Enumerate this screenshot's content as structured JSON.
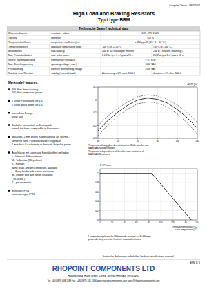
{
  "header": {
    "issue": "Ausgabe / Issue : 08/7/2007",
    "title": "High Load and Braking Resistors",
    "subtitle": "Typ / type BRM"
  },
  "specs": {
    "title": "Technische Daten / technical data",
    "rows": [
      [
        "Widerstandswerte",
        "resistance values",
        "10R, 47R, 150R,"
      ],
      [
        "Toleranz",
        "tolerance",
        "±10 %"
      ],
      [
        "Temperaturkoeffizient",
        "temperature coefficient (tcr)",
        "± 250 ppm/K ( 20 °C ~ 60 °C )"
      ],
      [
        "Temperaturbereich",
        "applicable temperature range",
        "-50 °C bis +150 °C",
        "-50 °C to +150 °C"
      ],
      [
        "Belastbarkeit",
        "load capacity",
        "200 W auf Kühlkörper montiert",
        "200 W ( heatsink mounting )"
      ],
      [
        "Max. Pulsbelastbarkeit",
        "max. pulse power",
        "2 kW für tp = 1 s / tpau = 90 s",
        "2 kW at tp = 1 s / tpau = 90 s"
      ],
      [
        "Innerer Wärmewiderstand",
        "internal heat resistance",
        "< 0.1 K/W"
      ],
      [
        "Max. Betriebsspannung",
        "operating voltage ( max )",
        "1000 VAC"
      ],
      [
        "Prüfspannung",
        "dielectric withstanding voltage",
        "2500 VAC"
      ],
      [
        "Stabilität unter Nennlast",
        "stability ( nominal load )",
        "Abweichung ≤ 1 % nach 2000 h",
        "deviation ≤ 1% after 2000 h"
      ]
    ]
  },
  "features": {
    "title": "Merkmale / features:",
    "items": [
      [
        "200 Watt Dauerleistung",
        "200 Watt permanent power"
      ],
      [
        "2 kWatt Pulsleistung für 1 s",
        "2 kWatt pulse power for 1 s"
      ],
      [
        "kompaktes Design",
        "small size"
      ],
      [
        "Bauhöhe kompatibel zu Econopack",
        "overall thickness compatible to Econopack"
      ],
      [
        "Massives, 2 mm dickes Kupfersubstrat als Wärme-",
        "senke für hohe Pulsbelastbarkeit eingebaut",
        "2 mm thick Cu substrate as heatsink for pulse power"
      ],
      [
        "Anschlüsse mit Litzen und Kontaktstiften verfügbar",
        "L - Litze mit Silikonisolation",
        "M - Teflonlitze (UL-gelistet)",
        "K - Kontakt",
        "flying leads and pin connectors available",
        "L - flying leader with silicon insulation",
        "M - copper wire with teflon insulation",
        "( UL-listed )",
        "K - pin connector"
      ],
      [
        "Schutzart IP 54",
        "protection type IP 54"
      ]
    ]
  },
  "chart_data": [
    {
      "type": "line",
      "y_label": "ΔR/R [%]",
      "annotations": [
        "Temperaturabhängigkeit des elektrischen Widerstandes von",
        "MANGANIN Widerständen",
        "Temperature dependence of the electrical resistance of",
        "MANGANIN resistors"
      ],
      "x": [
        -60,
        -40,
        -20,
        0,
        20,
        40,
        60,
        80,
        100,
        120,
        140
      ],
      "series": [
        {
          "color": "#000000",
          "line_style": "solid",
          "values": [
            -0.24,
            -0.16,
            -0.095,
            -0.04,
            0,
            0.015,
            0.005,
            -0.025,
            -0.075,
            -0.14,
            -0.22
          ]
        },
        {
          "color": "#000000",
          "line_style": "dashed",
          "values": [
            -0.2,
            -0.125,
            -0.065,
            -0.015,
            0.025,
            0.04,
            0.03,
            0.005,
            -0.04,
            -0.1,
            -0.175
          ]
        },
        {
          "color": "#000000",
          "line_style": "dashed",
          "values": [
            -0.28,
            -0.195,
            -0.125,
            -0.07,
            -0.03,
            -0.015,
            -0.025,
            -0.055,
            -0.11,
            -0.18,
            -0.265
          ]
        }
      ],
      "xlim": [
        -60,
        140
      ],
      "xticks": [
        -60,
        -20,
        20,
        60,
        100,
        140
      ],
      "ylim": [
        -0.3,
        0.1
      ],
      "yticks": [
        -0.3,
        -0.2,
        -0.1,
        0,
        0.1
      ],
      "grid": true
    },
    {
      "type": "line",
      "y_label": "P / Pnenn",
      "x_label": [
        "Gehäusetemperatur [°C]",
        "case temperature [°C]"
      ],
      "annotations": [
        "Lastminderungskurve für Widerstände montiert auf Kühlkörper",
        "power derating curve for heatsink mounted resistors"
      ],
      "x": [
        0,
        85,
        150
      ],
      "series": [
        {
          "color": "#000000",
          "line_style": "solid",
          "values": [
            1,
            1,
            0
          ]
        }
      ],
      "xlim": [
        0,
        160
      ],
      "xticks": [
        0,
        20,
        40,
        60,
        80,
        100,
        120,
        140,
        160
      ],
      "ylim": [
        0,
        1.1
      ],
      "yticks": [
        0,
        0.2,
        0.4,
        0.6,
        0.8,
        1
      ],
      "grid": true
    }
  ],
  "footer": {
    "note": "Technische Änderungen vorbehalten / technical modifications reserved",
    "page": "BRM 1 / 1",
    "company": "RHOPOINT COMPONENTS LTD",
    "address": "Holland Road, Hurst Green, Oxted, Surrey, RH8 9AX, ENGLAND",
    "contact": "Tel: +44(0)870 608 1188  Fax: +44(0)870 241 1306  www.rhopointcomponents.com  sales@rhopointcomponents.com"
  }
}
